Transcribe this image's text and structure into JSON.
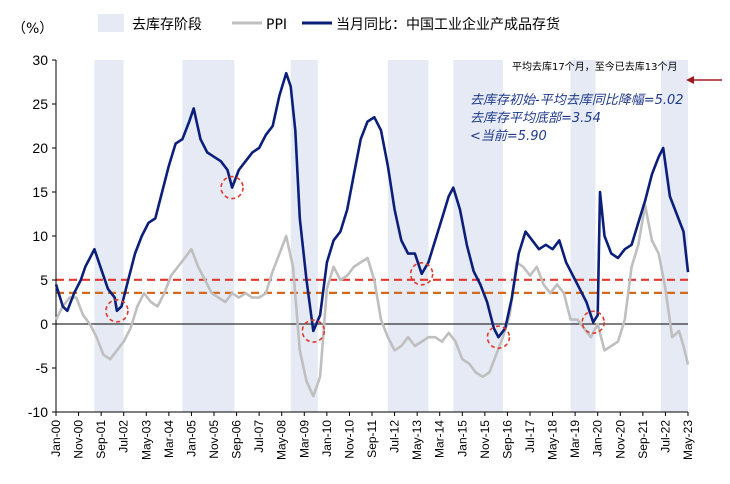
{
  "chart_data": {
    "type": "line",
    "ylabel": "（%）",
    "ylim": [
      -10,
      30
    ],
    "yticks": [
      -10,
      -5,
      0,
      5,
      10,
      15,
      20,
      25,
      30
    ],
    "xlim": [
      "2000-01",
      "2023-05"
    ],
    "xticks": [
      "Jan-00",
      "Nov-00",
      "Sep-01",
      "Jul-02",
      "May-03",
      "Mar-04",
      "Jan-05",
      "Nov-05",
      "Sep-06",
      "Jul-07",
      "May-08",
      "Mar-09",
      "Jan-10",
      "Nov-10",
      "Sep-11",
      "Jul-12",
      "May-13",
      "Mar-14",
      "Jan-15",
      "Nov-15",
      "Sep-16",
      "Jul-17",
      "May-18",
      "Mar-19",
      "Jan-20",
      "Nov-20",
      "Sep-21",
      "Jul-22",
      "May-23"
    ],
    "legend": {
      "position": "top",
      "items": [
        {
          "name": "去库存阶段",
          "kind": "shade",
          "color": "#e6eaf5"
        },
        {
          "name": "PPI",
          "kind": "line",
          "color": "#bfbfbf"
        },
        {
          "name": "当月同比：中国工业企业产成品存货",
          "kind": "line",
          "color": "#0b1f7a"
        }
      ]
    },
    "shaded_periods": [
      [
        "2001-06",
        "2002-07"
      ],
      [
        "2004-09",
        "2006-08"
      ],
      [
        "2008-09",
        "2009-09"
      ],
      [
        "2012-04",
        "2013-10"
      ],
      [
        "2014-09",
        "2016-07"
      ],
      [
        "2019-01",
        "2019-12"
      ],
      [
        "2022-05",
        "2023-05"
      ]
    ],
    "reference_lines": [
      {
        "value": 5.02,
        "color": "#e03a2e",
        "style": "dashed"
      },
      {
        "value": 3.54,
        "color": "#d2691e",
        "style": "dashed"
      }
    ],
    "troughs": [
      {
        "x": "2002-04",
        "y": 1.5
      },
      {
        "x": "2006-07",
        "y": 15.5
      },
      {
        "x": "2009-07",
        "y": -0.8
      },
      {
        "x": "2013-07",
        "y": 5.7
      },
      {
        "x": "2016-05",
        "y": -1.5
      },
      {
        "x": "2019-11",
        "y": 0.2
      }
    ],
    "annotations": {
      "top_note": "平均去库17个月，至今已去库13个月",
      "lines": [
        "去库存初始-平均去库同比降幅=5.02",
        "去库存平均底部=3.54",
        "<当前=5.90"
      ]
    },
    "series": [
      {
        "name": "当月同比：中国工业企业产成品存货",
        "color": "#0b1f7a",
        "points": [
          [
            "2000-01",
            4.5
          ],
          [
            "2000-04",
            2.0
          ],
          [
            "2000-06",
            1.5
          ],
          [
            "2000-09",
            3.5
          ],
          [
            "2000-12",
            5.0
          ],
          [
            "2001-02",
            6.5
          ],
          [
            "2001-04",
            7.5
          ],
          [
            "2001-06",
            8.5
          ],
          [
            "2001-08",
            7.0
          ],
          [
            "2001-10",
            5.5
          ],
          [
            "2001-12",
            4.0
          ],
          [
            "2002-03",
            3.0
          ],
          [
            "2002-04",
            1.5
          ],
          [
            "2002-06",
            2.0
          ],
          [
            "2002-09",
            5.0
          ],
          [
            "2002-12",
            8.0
          ],
          [
            "2003-03",
            10.0
          ],
          [
            "2003-06",
            11.5
          ],
          [
            "2003-09",
            12.0
          ],
          [
            "2003-12",
            15.0
          ],
          [
            "2004-03",
            18.0
          ],
          [
            "2004-06",
            20.5
          ],
          [
            "2004-09",
            21.0
          ],
          [
            "2004-12",
            23.0
          ],
          [
            "2005-02",
            24.5
          ],
          [
            "2005-05",
            21.0
          ],
          [
            "2005-08",
            19.5
          ],
          [
            "2005-11",
            19.0
          ],
          [
            "2006-02",
            18.5
          ],
          [
            "2006-05",
            17.5
          ],
          [
            "2006-07",
            15.5
          ],
          [
            "2006-10",
            17.5
          ],
          [
            "2007-01",
            18.5
          ],
          [
            "2007-04",
            19.5
          ],
          [
            "2007-07",
            20.0
          ],
          [
            "2007-10",
            21.5
          ],
          [
            "2008-01",
            22.5
          ],
          [
            "2008-04",
            26.0
          ],
          [
            "2008-07",
            28.5
          ],
          [
            "2008-09",
            27.0
          ],
          [
            "2008-11",
            22.0
          ],
          [
            "2009-01",
            12.0
          ],
          [
            "2009-04",
            5.0
          ],
          [
            "2009-07",
            -0.8
          ],
          [
            "2009-10",
            1.0
          ],
          [
            "2010-01",
            7.0
          ],
          [
            "2010-04",
            9.5
          ],
          [
            "2010-07",
            10.5
          ],
          [
            "2010-10",
            13.0
          ],
          [
            "2011-01",
            17.0
          ],
          [
            "2011-04",
            21.0
          ],
          [
            "2011-07",
            23.0
          ],
          [
            "2011-10",
            23.5
          ],
          [
            "2012-01",
            22.0
          ],
          [
            "2012-04",
            18.0
          ],
          [
            "2012-07",
            13.0
          ],
          [
            "2012-10",
            9.5
          ],
          [
            "2013-01",
            8.0
          ],
          [
            "2013-04",
            8.0
          ],
          [
            "2013-07",
            5.7
          ],
          [
            "2013-10",
            7.0
          ],
          [
            "2014-01",
            9.5
          ],
          [
            "2014-04",
            12.0
          ],
          [
            "2014-07",
            14.5
          ],
          [
            "2014-09",
            15.5
          ],
          [
            "2014-12",
            13.0
          ],
          [
            "2015-03",
            9.0
          ],
          [
            "2015-06",
            6.0
          ],
          [
            "2015-09",
            4.5
          ],
          [
            "2015-12",
            2.5
          ],
          [
            "2016-03",
            -0.5
          ],
          [
            "2016-05",
            -1.5
          ],
          [
            "2016-08",
            -0.5
          ],
          [
            "2016-11",
            3.0
          ],
          [
            "2017-02",
            8.0
          ],
          [
            "2017-05",
            10.5
          ],
          [
            "2017-08",
            9.5
          ],
          [
            "2017-11",
            8.5
          ],
          [
            "2018-02",
            9.0
          ],
          [
            "2018-05",
            8.5
          ],
          [
            "2018-08",
            9.5
          ],
          [
            "2018-11",
            7.0
          ],
          [
            "2019-02",
            5.5
          ],
          [
            "2019-05",
            4.0
          ],
          [
            "2019-08",
            2.5
          ],
          [
            "2019-11",
            0.2
          ],
          [
            "2020-01",
            1.0
          ],
          [
            "2020-02",
            15.0
          ],
          [
            "2020-04",
            10.0
          ],
          [
            "2020-07",
            8.0
          ],
          [
            "2020-10",
            7.5
          ],
          [
            "2021-01",
            8.5
          ],
          [
            "2021-04",
            9.0
          ],
          [
            "2021-07",
            11.5
          ],
          [
            "2021-10",
            14.0
          ],
          [
            "2022-01",
            17.0
          ],
          [
            "2022-04",
            19.0
          ],
          [
            "2022-06",
            20.0
          ],
          [
            "2022-09",
            14.5
          ],
          [
            "2022-12",
            12.5
          ],
          [
            "2023-03",
            10.5
          ],
          [
            "2023-05",
            5.9
          ]
        ]
      },
      {
        "name": "PPI",
        "color": "#bfbfbf",
        "points": [
          [
            "2000-01",
            0.5
          ],
          [
            "2000-04",
            2.0
          ],
          [
            "2000-07",
            3.0
          ],
          [
            "2000-10",
            3.0
          ],
          [
            "2001-01",
            1.0
          ],
          [
            "2001-04",
            0.0
          ],
          [
            "2001-07",
            -1.5
          ],
          [
            "2001-10",
            -3.5
          ],
          [
            "2002-01",
            -4.0
          ],
          [
            "2002-04",
            -3.0
          ],
          [
            "2002-07",
            -2.0
          ],
          [
            "2002-10",
            -0.5
          ],
          [
            "2003-01",
            2.0
          ],
          [
            "2003-04",
            3.5
          ],
          [
            "2003-07",
            2.5
          ],
          [
            "2003-10",
            2.0
          ],
          [
            "2004-01",
            3.5
          ],
          [
            "2004-04",
            5.5
          ],
          [
            "2004-07",
            6.5
          ],
          [
            "2004-10",
            7.5
          ],
          [
            "2005-01",
            8.5
          ],
          [
            "2005-04",
            6.5
          ],
          [
            "2005-07",
            5.0
          ],
          [
            "2005-10",
            3.5
          ],
          [
            "2006-01",
            3.0
          ],
          [
            "2006-04",
            2.5
          ],
          [
            "2006-07",
            3.5
          ],
          [
            "2006-10",
            3.0
          ],
          [
            "2007-01",
            3.5
          ],
          [
            "2007-04",
            3.0
          ],
          [
            "2007-07",
            3.0
          ],
          [
            "2007-10",
            3.5
          ],
          [
            "2008-01",
            6.0
          ],
          [
            "2008-04",
            8.0
          ],
          [
            "2008-07",
            10.0
          ],
          [
            "2008-10",
            6.5
          ],
          [
            "2009-01",
            -3.0
          ],
          [
            "2009-04",
            -6.5
          ],
          [
            "2009-07",
            -8.2
          ],
          [
            "2009-10",
            -6.0
          ],
          [
            "2010-01",
            4.0
          ],
          [
            "2010-04",
            6.5
          ],
          [
            "2010-07",
            5.0
          ],
          [
            "2010-10",
            5.5
          ],
          [
            "2011-01",
            6.5
          ],
          [
            "2011-04",
            7.0
          ],
          [
            "2011-07",
            7.5
          ],
          [
            "2011-10",
            5.0
          ],
          [
            "2012-01",
            0.5
          ],
          [
            "2012-04",
            -1.5
          ],
          [
            "2012-07",
            -3.0
          ],
          [
            "2012-10",
            -2.5
          ],
          [
            "2013-01",
            -1.5
          ],
          [
            "2013-04",
            -2.5
          ],
          [
            "2013-07",
            -2.0
          ],
          [
            "2013-10",
            -1.5
          ],
          [
            "2014-01",
            -1.5
          ],
          [
            "2014-04",
            -2.0
          ],
          [
            "2014-07",
            -1.0
          ],
          [
            "2014-10",
            -2.0
          ],
          [
            "2015-01",
            -4.0
          ],
          [
            "2015-04",
            -4.5
          ],
          [
            "2015-07",
            -5.5
          ],
          [
            "2015-10",
            -6.0
          ],
          [
            "2016-01",
            -5.5
          ],
          [
            "2016-04",
            -3.5
          ],
          [
            "2016-07",
            -1.5
          ],
          [
            "2016-10",
            1.0
          ],
          [
            "2017-01",
            7.0
          ],
          [
            "2017-04",
            6.5
          ],
          [
            "2017-07",
            5.5
          ],
          [
            "2017-10",
            6.5
          ],
          [
            "2018-01",
            4.5
          ],
          [
            "2018-04",
            3.5
          ],
          [
            "2018-07",
            4.5
          ],
          [
            "2018-10",
            3.5
          ],
          [
            "2019-01",
            0.5
          ],
          [
            "2019-04",
            0.5
          ],
          [
            "2019-07",
            -0.5
          ],
          [
            "2019-10",
            -1.5
          ],
          [
            "2020-01",
            0.0
          ],
          [
            "2020-04",
            -3.0
          ],
          [
            "2020-07",
            -2.5
          ],
          [
            "2020-10",
            -2.0
          ],
          [
            "2021-01",
            0.5
          ],
          [
            "2021-04",
            6.5
          ],
          [
            "2021-07",
            9.0
          ],
          [
            "2021-10",
            13.5
          ],
          [
            "2022-01",
            9.5
          ],
          [
            "2022-04",
            8.0
          ],
          [
            "2022-07",
            4.0
          ],
          [
            "2022-10",
            -1.5
          ],
          [
            "2023-01",
            -0.8
          ],
          [
            "2023-03",
            -2.5
          ],
          [
            "2023-05",
            -4.6
          ]
        ]
      }
    ]
  }
}
